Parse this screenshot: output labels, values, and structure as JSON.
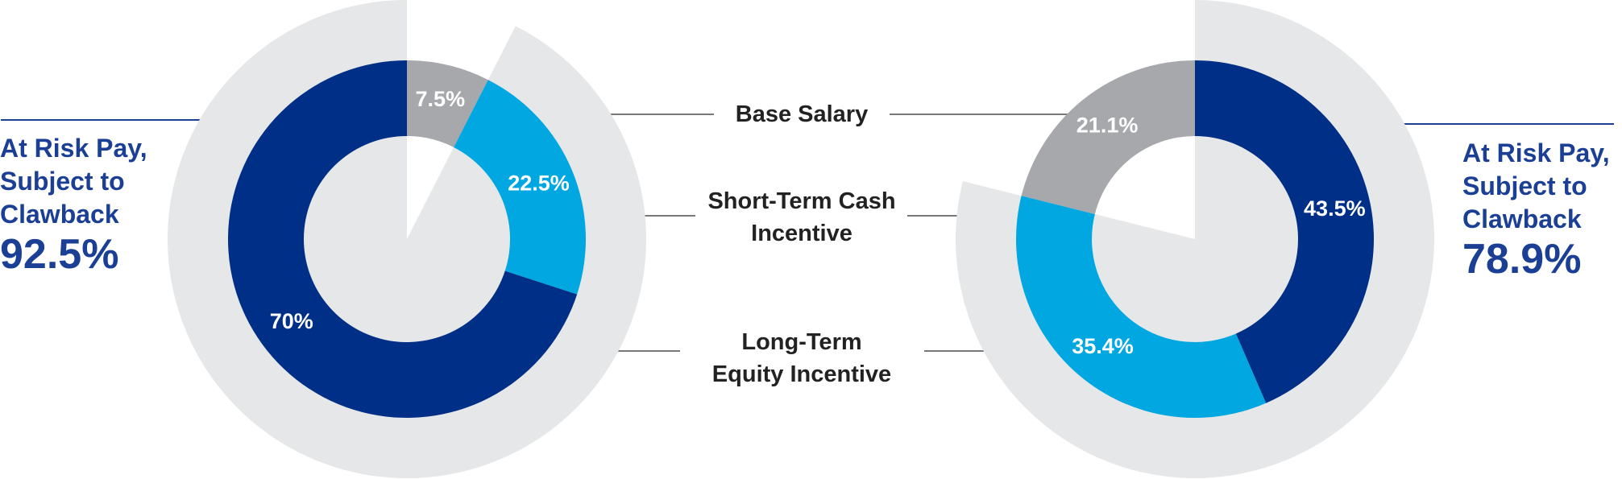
{
  "chart_data": [
    {
      "type": "donut",
      "categories": [
        "Base Salary",
        "Short-Term Cash Incentive",
        "Long-Term Equity Incentive"
      ],
      "values": [
        7.5,
        22.5,
        70
      ],
      "value_labels": [
        "7.5%",
        "22.5%",
        "70%"
      ],
      "colors": [
        "#a7a8ab",
        "#00a7e1",
        "#002f87"
      ],
      "highlight": {
        "label": "At Risk Pay, Subject to Clawback",
        "value": 92.5,
        "value_label": "92.5%",
        "color": "#e6e7e8",
        "align": "end"
      }
    },
    {
      "type": "donut",
      "values": [
        43.5,
        35.4,
        21.1
      ],
      "value_labels": [
        "43.5%",
        "35.4%",
        "21.1%"
      ],
      "colors": [
        "#002f87",
        "#00a7e1",
        "#a7a8ab"
      ],
      "highlight": {
        "label": "At Risk Pay, Subject to Clawback",
        "value": 78.9,
        "value_label": "78.9%",
        "color": "#e6e7e8",
        "align": "start"
      }
    }
  ]
}
